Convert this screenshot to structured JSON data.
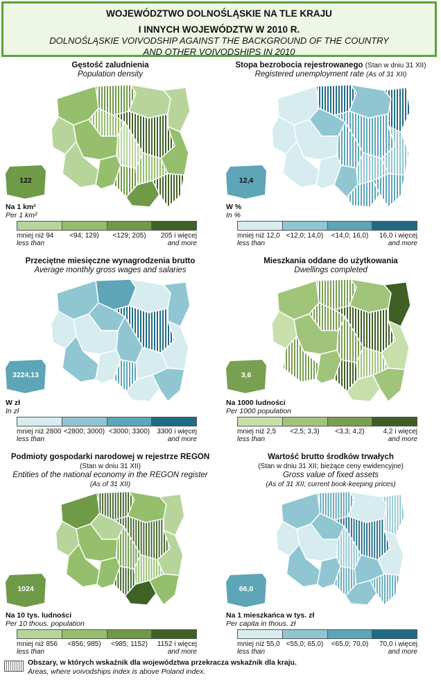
{
  "header": {
    "line1": "WOJEWÓDZTWO DOLNOŚLĄSKIE NA TLE KRAJU",
    "line2": "I INNYCH WOJEWÓDZTW W 2010 R.",
    "line3": "DOLNOŚLĄSKIE VOIVODSHIP AGAINST THE BACKGROUND OF THE COUNTRY",
    "line4": "AND OTHER VOIVODSHIPS IN 2010"
  },
  "panels": [
    {
      "title_pl": "Gęstość zaludnienia",
      "title_pl_note": "",
      "title_en": "Population density",
      "title_en2": "",
      "badge": "122",
      "unit_pl": "Na 1 km²",
      "unit_en": "Per 1 km²",
      "legend": [
        "mniej niż 94",
        "<94; 129)",
        "<129; 205)",
        "205 i więcej"
      ],
      "legend_sub": [
        "less than",
        "and more"
      ],
      "colors": [
        "#b7d59b",
        "#95bf6c",
        "#6f9a47",
        "#3f6126"
      ],
      "classes": [
        2,
        0,
        0,
        1,
        1,
        3,
        0,
        1,
        0,
        1,
        0,
        1,
        2,
        1,
        2,
        3
      ],
      "hatched": [
        1,
        0,
        0,
        0,
        1,
        1,
        0,
        0,
        1,
        0,
        0,
        0,
        1,
        1,
        0,
        1
      ]
    },
    {
      "title_pl": "Stopa bezrobocia rejestrowanego",
      "title_pl_note": "(Stan w dniu 31 XII)",
      "title_en": "Registered unemployment rate",
      "title_en_note": "(As of 31 XII)",
      "title_en2": "",
      "badge": "12,4",
      "unit_pl": "W %",
      "unit_en": "In %",
      "legend": [
        "mniej niż 12,0",
        "<12,0; 14,0)",
        "<14,0; 16,0)",
        "16,0 i więcej"
      ],
      "legend_sub": [
        "less than",
        "and more"
      ],
      "colors": [
        "#d6ecef",
        "#8fc6d2",
        "#5da5b7",
        "#1f6b84"
      ],
      "classes": [
        3,
        1,
        3,
        0,
        1,
        2,
        0,
        0,
        2,
        1,
        0,
        0,
        1,
        1,
        2,
        2
      ],
      "hatched": [
        1,
        0,
        1,
        0,
        0,
        1,
        0,
        0,
        1,
        1,
        0,
        0,
        0,
        1,
        1,
        1
      ]
    },
    {
      "title_pl": "Przeciętne miesięczne wynagrodzenia brutto",
      "title_pl_note": "",
      "title_en": "Average monthly gross wages and salaries",
      "title_en2": "",
      "badge": "3224,13",
      "unit_pl": "W zł",
      "unit_en": "In zł",
      "legend": [
        "mniej niż 2800",
        "<2800; 3000)",
        "<3000; 3300)",
        "3300 i więcej"
      ],
      "legend_sub": [
        "less than",
        "and more"
      ],
      "colors": [
        "#d6ecef",
        "#8fc6d2",
        "#5da5b7",
        "#1f6b84"
      ],
      "classes": [
        2,
        0,
        1,
        1,
        1,
        3,
        0,
        0,
        1,
        0,
        1,
        0,
        2,
        0,
        0,
        1
      ],
      "hatched": [
        0,
        0,
        0,
        0,
        0,
        1,
        0,
        0,
        0,
        0,
        0,
        0,
        1,
        0,
        0,
        0
      ]
    },
    {
      "title_pl": "Mieszkania oddane do użytkowania",
      "title_pl_note": "",
      "title_en": "Dwellings completed",
      "title_en2": "",
      "badge": "3,6",
      "unit_pl": "Na 1000 ludności",
      "unit_en": "Per 1000 population",
      "legend": [
        "mniej niż 2,5",
        "<2,5; 3,3)",
        "<3,3; 4,2)",
        "4,2 i więcej"
      ],
      "legend_sub": [
        "less than",
        "and more"
      ],
      "colors": [
        "#c8dfac",
        "#a1c47b",
        "#799f51",
        "#3f5f24"
      ],
      "classes": [
        2,
        1,
        3,
        1,
        2,
        3,
        0,
        1,
        2,
        0,
        2,
        1,
        3,
        1,
        0,
        1
      ],
      "hatched": [
        1,
        0,
        0,
        0,
        1,
        1,
        0,
        0,
        1,
        0,
        1,
        0,
        1,
        1,
        0,
        0
      ]
    },
    {
      "title_pl": "Podmioty gospodarki narodowej w rejestrze REGON",
      "title_pl_note": "(Stan w dniu 31 XII)",
      "title_en": "Entities of the national economy in the REGON register",
      "title_en2": "(As of 31 XII)",
      "badge": "1024",
      "unit_pl": "Na 10 tys. ludności",
      "unit_en": "Per 10 thous. population",
      "legend": [
        "mniej niż 856",
        "<856; 985)",
        "<985; 1152)",
        "1152 i więcej"
      ],
      "legend_sub": [
        "less than",
        "and more"
      ],
      "colors": [
        "#b7d59b",
        "#95bf6c",
        "#6f9a47",
        "#3f6126"
      ],
      "classes": [
        3,
        1,
        0,
        2,
        0,
        3,
        0,
        1,
        2,
        0,
        1,
        1,
        3,
        1,
        3,
        1
      ],
      "hatched": [
        1,
        0,
        0,
        0,
        0,
        1,
        0,
        0,
        1,
        0,
        0,
        0,
        1,
        1,
        0,
        0
      ]
    },
    {
      "title_pl": "Wartość brutto środków trwałych",
      "title_pl_note": "",
      "title_en": "(Stan w dniu 31 XII; bieżące ceny ewidencyjne)",
      "title_en2": "Gross value of fixed assets",
      "title_en3": "(As of 31 XII; current book-keeping prices)",
      "badge": "66,0",
      "unit_pl": "Na 1 mieszkańca w tys. zł",
      "unit_en": "Per capita in thous. zł",
      "legend": [
        "mniej niż 55,0",
        "<55,0; 65,0)",
        "<65,0; 70,0)",
        "70,0 i więcej"
      ],
      "legend_sub": [
        "less than",
        "and more"
      ],
      "colors": [
        "#d6ecef",
        "#8fc6d2",
        "#5da5b7",
        "#1f6b84"
      ],
      "classes": [
        2,
        0,
        1,
        1,
        1,
        3,
        0,
        0,
        1,
        0,
        1,
        1,
        2,
        1,
        1,
        2
      ],
      "hatched": [
        1,
        0,
        1,
        0,
        0,
        1,
        0,
        0,
        1,
        0,
        0,
        0,
        1,
        0,
        0,
        1
      ]
    }
  ],
  "footer": {
    "line1": "Obszary, w których wskaźnik dla województwa przekracza wskaźnik dla kraju.",
    "line2": "Areas, where voivodships index is above Poland index."
  }
}
